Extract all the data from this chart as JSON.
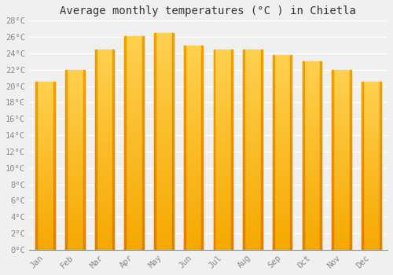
{
  "months": [
    "Jan",
    "Feb",
    "Mar",
    "Apr",
    "May",
    "Jun",
    "Jul",
    "Aug",
    "Sep",
    "Oct",
    "Nov",
    "Dec"
  ],
  "values": [
    20.5,
    22.0,
    24.5,
    26.1,
    26.5,
    25.0,
    24.5,
    24.5,
    23.8,
    23.0,
    22.0,
    20.5
  ],
  "bar_color_top": "#FFD060",
  "bar_color_bottom": "#F5A800",
  "bar_color_edge": "#E89000",
  "bar_color_side": "#F08000",
  "title": "Average monthly temperatures (°C ) in Chietla",
  "ylim": [
    0,
    28
  ],
  "ytick_step": 2,
  "background_color": "#f0f0f0",
  "grid_color": "#ffffff",
  "title_fontsize": 10,
  "tick_fontsize": 7.5,
  "tick_color": "#888888",
  "font_family": "monospace",
  "bar_width": 0.65
}
